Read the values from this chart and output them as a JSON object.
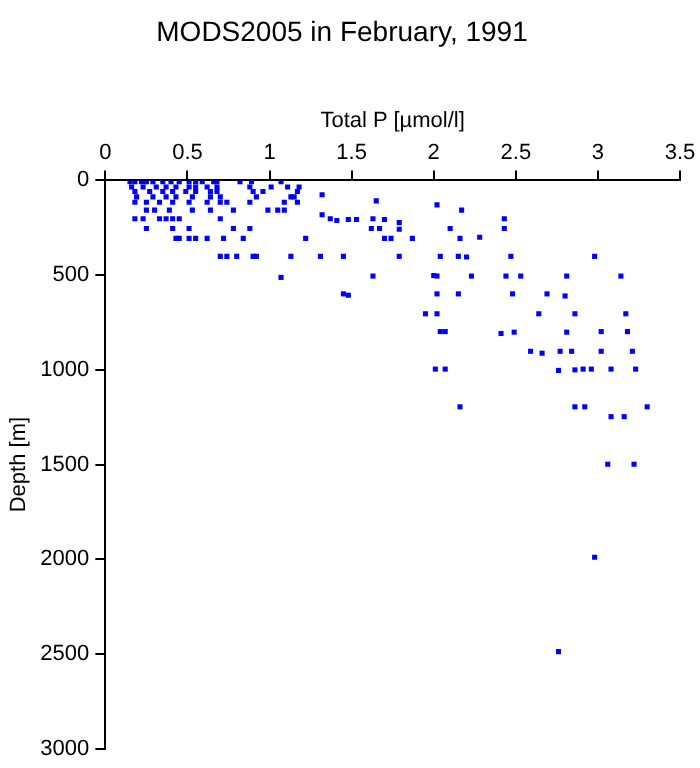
{
  "chart_data": {
    "type": "scatter",
    "title": "MODS2005 in February, 1991",
    "xlabel": "Total P [µmol/l]",
    "ylabel": "Depth [m]",
    "x": [
      0.15,
      0.18,
      0.22,
      0.25,
      0.29,
      0.35,
      0.4,
      0.45,
      0.51,
      0.55,
      0.59,
      0.66,
      0.68,
      0.82,
      0.89,
      1.07,
      0.16,
      0.23,
      0.31,
      0.37,
      0.43,
      0.51,
      0.55,
      0.62,
      0.68,
      0.88,
      1.01,
      1.11,
      0.18,
      0.27,
      0.35,
      0.41,
      0.49,
      0.55,
      0.64,
      0.68,
      0.9,
      0.96,
      1.17,
      0.19,
      0.29,
      0.37,
      0.43,
      0.53,
      0.64,
      0.7,
      0.92,
      1.13,
      1.15,
      0.18,
      0.25,
      0.33,
      0.41,
      0.51,
      0.62,
      0.7,
      0.74,
      0.88,
      1.09,
      1.17,
      0.25,
      0.3,
      0.39,
      0.53,
      0.64,
      0.78,
      0.99,
      1.05,
      1.09,
      0.18,
      0.23,
      0.33,
      0.37,
      0.41,
      0.45,
      0.7,
      0.25,
      0.41,
      0.51,
      0.78,
      0.88,
      0.43,
      0.45,
      0.51,
      0.55,
      0.62,
      0.72,
      0.84,
      0.7,
      0.74,
      0.8,
      0.9,
      0.92,
      1.13,
      1.07,
      1.18,
      1.32,
      1.65,
      2.02,
      2.17,
      1.32,
      1.37,
      1.41,
      1.48,
      1.53,
      1.63,
      1.7,
      1.79,
      2.43,
      2.43,
      1.62,
      1.67,
      1.79,
      2.1,
      1.22,
      1.7,
      1.74,
      1.87,
      2.16,
      2.28,
      1.31,
      1.45,
      1.79,
      2.04,
      2.15,
      2.2,
      2.47,
      2.98,
      1.63,
      2.0,
      2.02,
      2.23,
      2.44,
      2.53,
      2.81,
      3.14,
      1.45,
      1.48,
      2.02,
      2.15,
      2.48,
      2.69,
      2.8,
      1.95,
      2.02,
      2.64,
      2.86,
      3.17,
      2.04,
      2.07,
      2.41,
      2.49,
      2.81,
      3.02,
      3.18,
      2.59,
      2.66,
      2.77,
      2.84,
      3.02,
      3.21,
      2.01,
      2.07,
      2.76,
      2.86,
      2.91,
      2.96,
      3.08,
      3.23,
      2.16,
      2.86,
      2.92,
      3.3,
      3.08,
      3.16,
      3.06,
      3.22,
      2.98,
      2.76
    ],
    "values": [
      7,
      7,
      7,
      7,
      7,
      7,
      7,
      7,
      7,
      7,
      7,
      7,
      7,
      7,
      7,
      7,
      35,
      35,
      35,
      35,
      35,
      35,
      35,
      35,
      35,
      35,
      35,
      35,
      59,
      59,
      59,
      59,
      59,
      59,
      59,
      59,
      59,
      59,
      59,
      87,
      87,
      87,
      87,
      87,
      87,
      87,
      87,
      87,
      87,
      115,
      115,
      115,
      115,
      115,
      115,
      115,
      115,
      115,
      115,
      115,
      157,
      157,
      157,
      157,
      157,
      157,
      157,
      157,
      157,
      202,
      202,
      202,
      202,
      202,
      202,
      202,
      254,
      254,
      254,
      254,
      254,
      306,
      306,
      306,
      306,
      306,
      306,
      306,
      401,
      401,
      401,
      401,
      401,
      401,
      512,
      35,
      76,
      108,
      129,
      157,
      181,
      202,
      212,
      206,
      206,
      202,
      206,
      223,
      202,
      254,
      254,
      254,
      258,
      254,
      306,
      306,
      306,
      306,
      306,
      300,
      401,
      401,
      401,
      401,
      401,
      404,
      401,
      401,
      505,
      502,
      505,
      505,
      505,
      505,
      505,
      505,
      599,
      606,
      599,
      599,
      599,
      599,
      610,
      704,
      704,
      704,
      704,
      704,
      798,
      798,
      808,
      801,
      801,
      798,
      798,
      902,
      912,
      902,
      902,
      902,
      902,
      996,
      996,
      1003,
      1000,
      996,
      996,
      996,
      996,
      1195,
      1195,
      1195,
      1195,
      1247,
      1247,
      1498,
      1498,
      1989,
      2487
    ],
    "color": "#0000ff",
    "marker": "square",
    "xlim": [
      0,
      3.5
    ],
    "xticks": [
      0,
      0.5,
      1,
      1.5,
      2,
      2.5,
      3,
      3.5
    ],
    "ylim": [
      3000,
      0
    ],
    "yticks": [
      0,
      500,
      1000,
      1500,
      2000,
      2500,
      3000
    ],
    "grid": false,
    "legend": false
  }
}
